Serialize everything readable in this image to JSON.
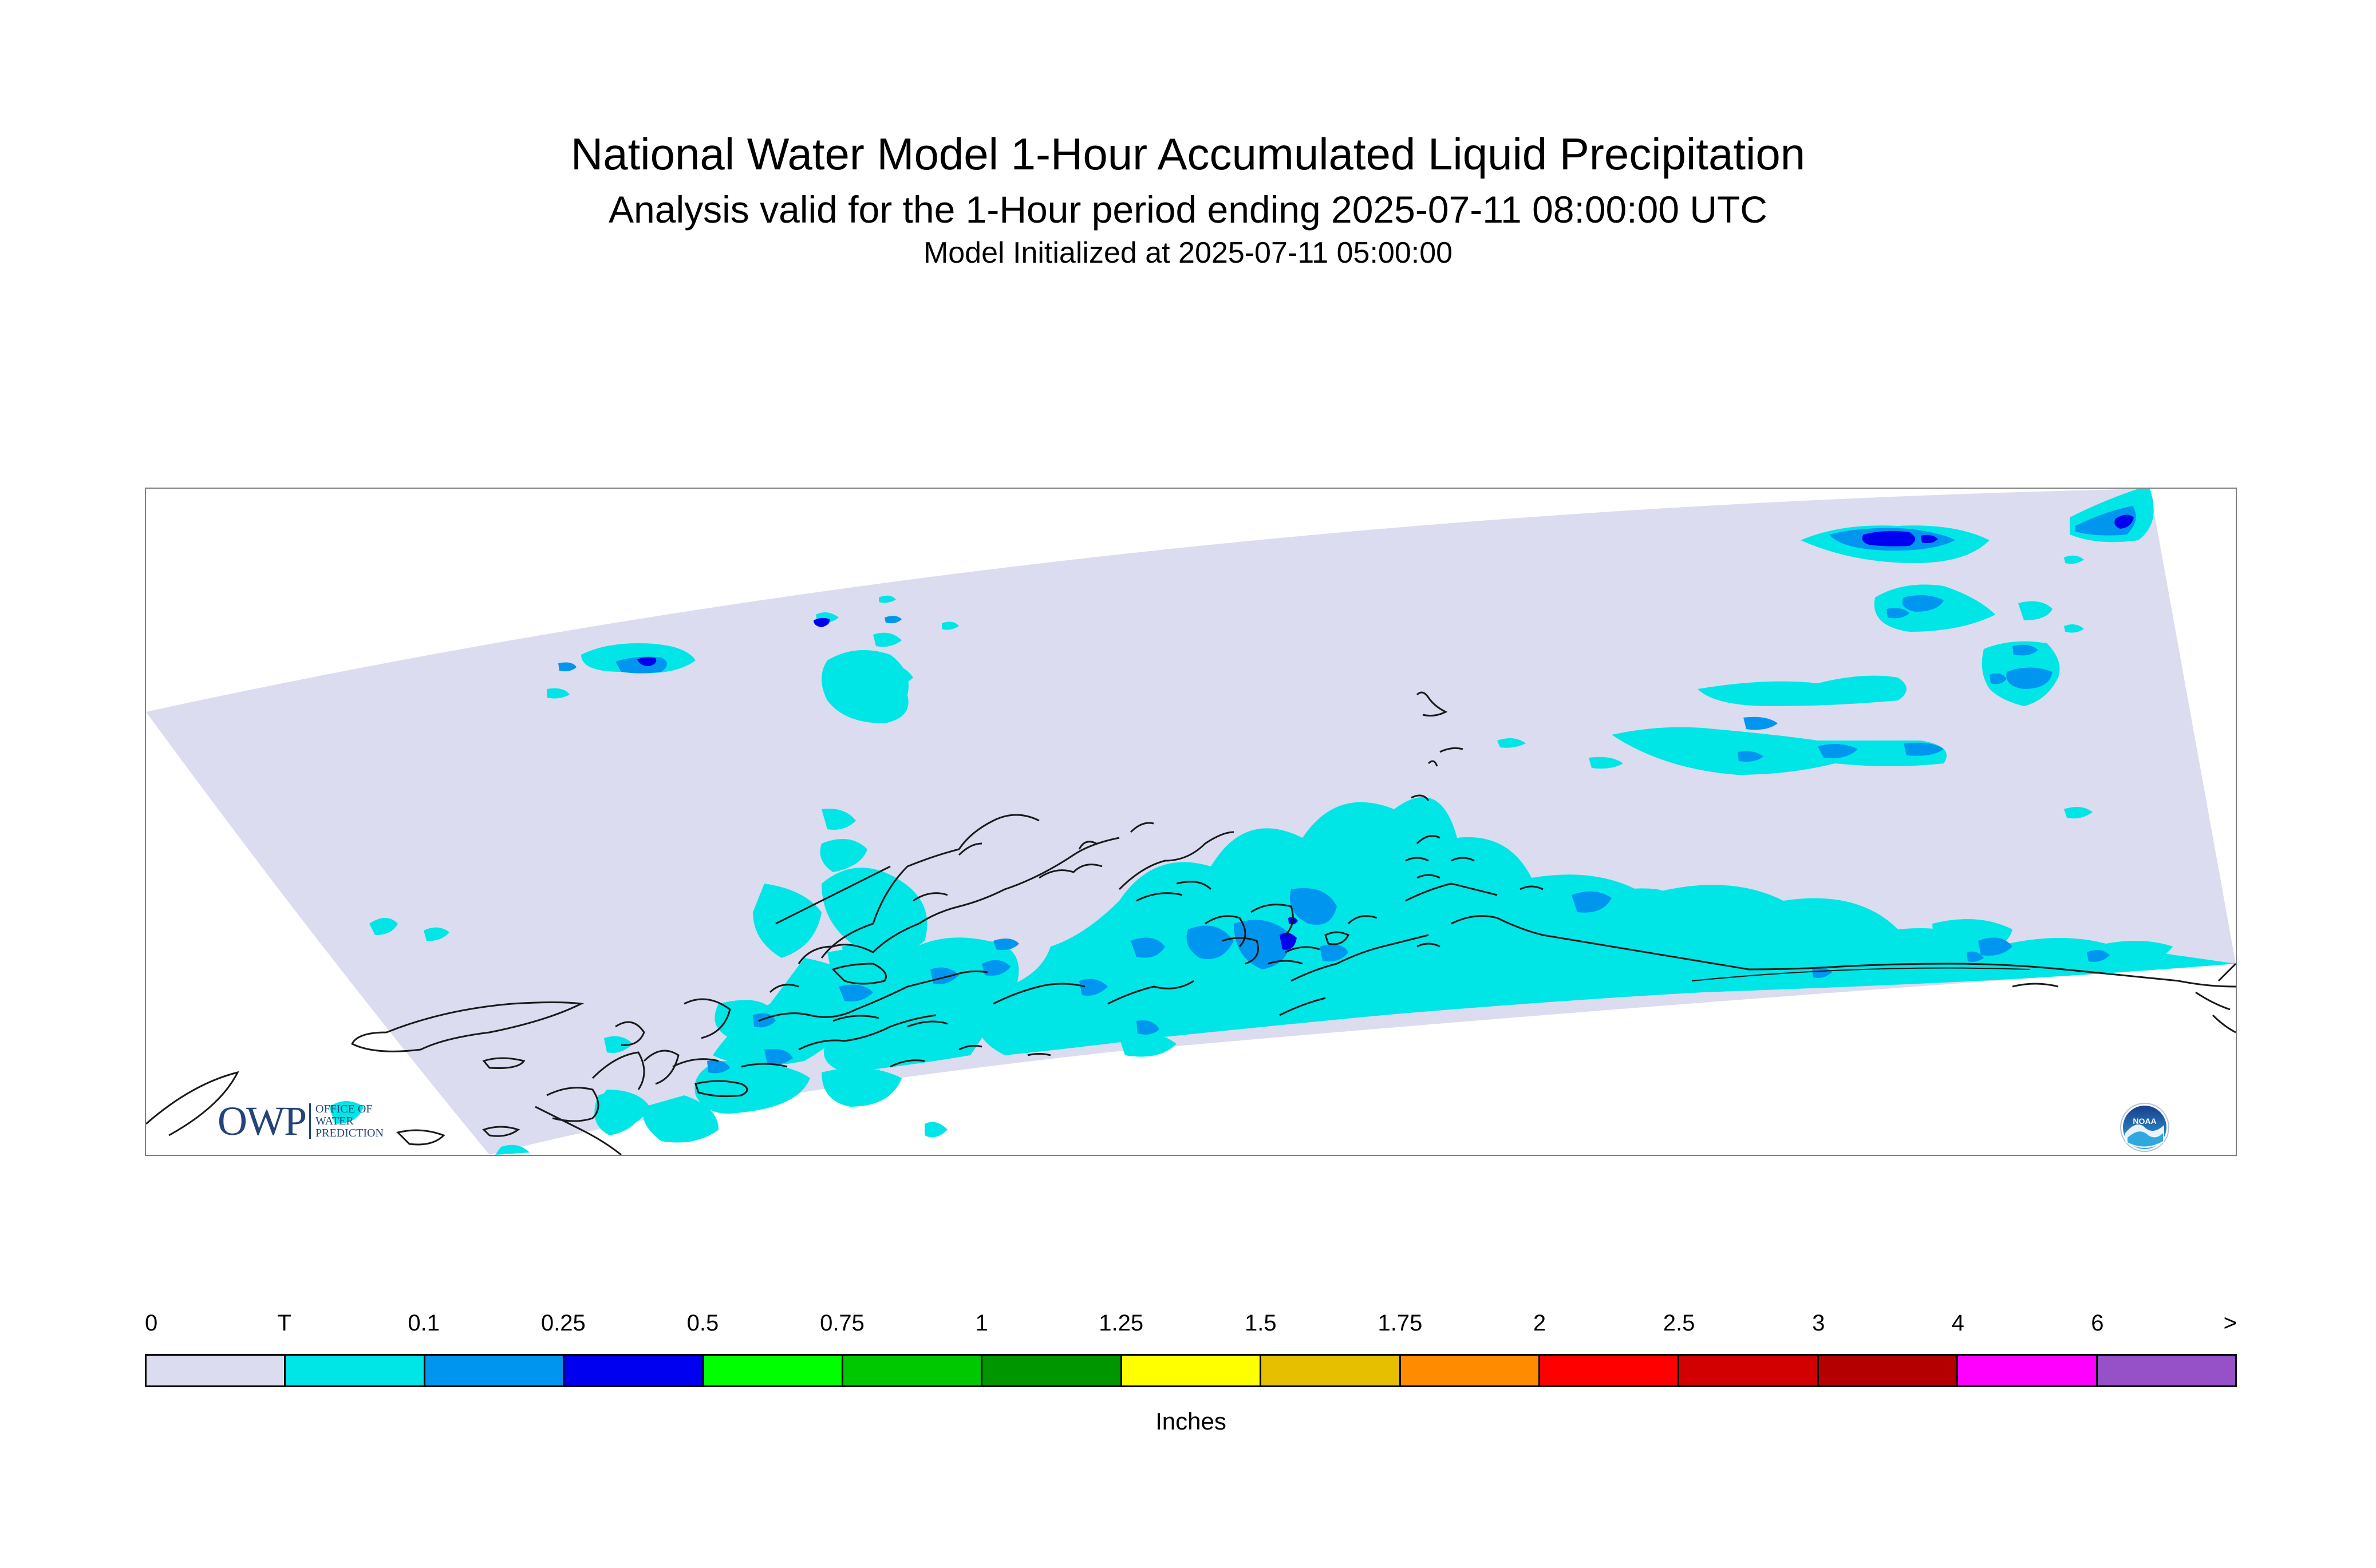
{
  "header": {
    "title": "National Water Model 1-Hour Accumulated Liquid Precipitation",
    "subtitle": "Analysis valid for the 1-Hour period ending 2025-07-11 08:00:00 UTC",
    "init": "Model Initialized at 2025-07-11 05:00:00"
  },
  "map": {
    "domain_fill": "#dcdcf0",
    "precip_colors": {
      "trace": "#00e6e6",
      "light": "#0096f0",
      "moderate": "#0000f0"
    }
  },
  "owp_logo": {
    "letters": "OWP",
    "line1": "OFFICE OF",
    "line2": "WATER",
    "line3": "PREDICTION"
  },
  "noaa_logo": {
    "text": "NOAA"
  },
  "legend": {
    "ticks": [
      "0",
      "T",
      "0.1",
      "0.25",
      "0.5",
      "0.75",
      "1",
      "1.25",
      "1.5",
      "1.75",
      "2",
      "2.5",
      "3",
      "4",
      "6",
      ">"
    ],
    "colors": [
      "#dcdcf0",
      "#00e6e6",
      "#0096f0",
      "#0000f0",
      "#00ff00",
      "#00c800",
      "#009600",
      "#ffff00",
      "#e6c000",
      "#ff8c00",
      "#ff0000",
      "#d20000",
      "#b40000",
      "#ff00ff",
      "#9650c8"
    ],
    "units": "Inches"
  }
}
